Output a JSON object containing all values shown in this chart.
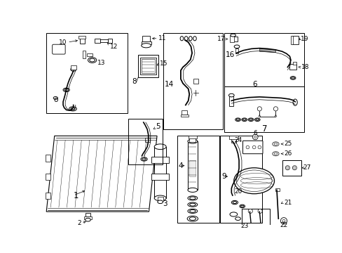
{
  "bg": "#ffffff",
  "lc": "#000000",
  "fs": 6.5,
  "lw": 0.7
}
